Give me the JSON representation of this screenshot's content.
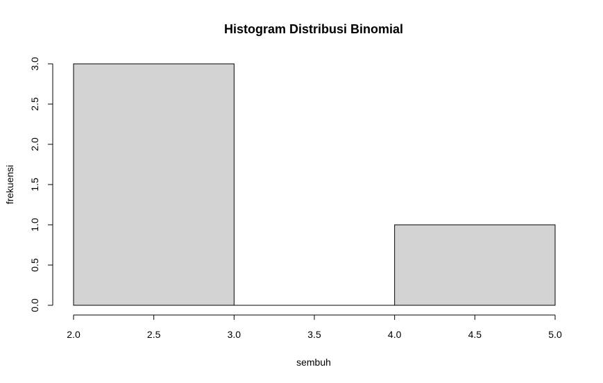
{
  "chart_data": {
    "type": "bar",
    "title": "Histogram Distribusi Binomial",
    "xlabel": "sembuh",
    "ylabel": "frekuensi",
    "bins": [
      {
        "from": 2.0,
        "to": 3.0,
        "value": 3
      },
      {
        "from": 3.0,
        "to": 4.0,
        "value": 0
      },
      {
        "from": 4.0,
        "to": 5.0,
        "value": 1
      }
    ],
    "xlim": [
      2.0,
      5.0
    ],
    "ylim": [
      0.0,
      3.0
    ],
    "x_ticks": [
      "2.0",
      "2.5",
      "3.0",
      "3.5",
      "4.0",
      "4.5",
      "5.0"
    ],
    "y_ticks": [
      "0.0",
      "0.5",
      "1.0",
      "1.5",
      "2.0",
      "2.5",
      "3.0"
    ],
    "bar_fill": "#d3d3d3",
    "bar_border": "#000000",
    "grid": false,
    "legend": "none"
  }
}
